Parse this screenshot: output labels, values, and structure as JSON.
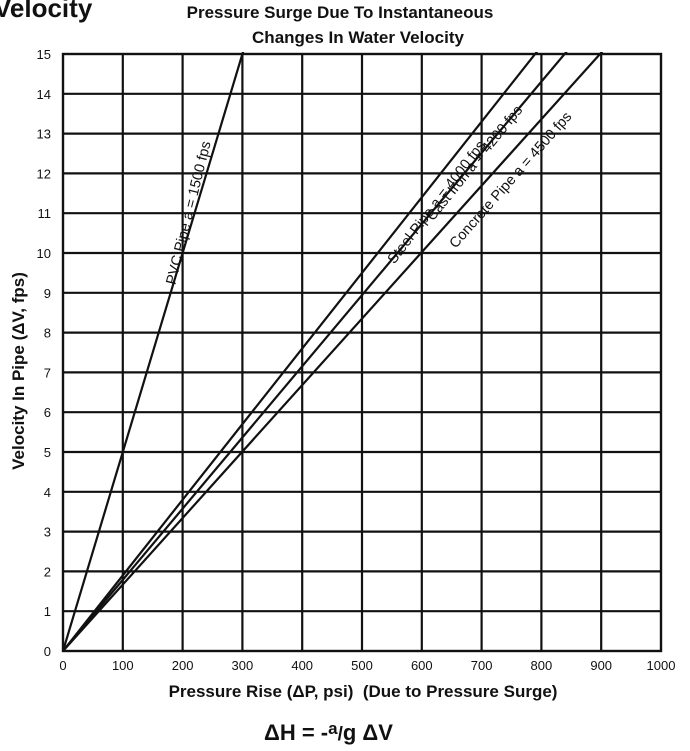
{
  "heading_cut": "Velocity",
  "formula": {
    "lhs": "ΔH = -",
    "num": "a",
    "slash": "/",
    "den": "g",
    "rhs": " ΔV"
  },
  "chart_data": {
    "type": "line",
    "title_lines": [
      "Pressure Surge Due To Instantaneous",
      "Changes In Water Velocity"
    ],
    "xlabel": "Pressure Rise (ΔP, psi)  (Due to Pressure Surge)",
    "ylabel": "Velocity In Pipe (ΔV, fps)",
    "xlim": [
      0,
      1000
    ],
    "ylim": [
      0,
      15
    ],
    "x_ticks": [
      0,
      100,
      200,
      300,
      400,
      500,
      600,
      700,
      800,
      900,
      1000
    ],
    "y_ticks": [
      0,
      1,
      2,
      3,
      4,
      5,
      6,
      7,
      8,
      9,
      10,
      11,
      12,
      13,
      14,
      15
    ],
    "grid": true,
    "series": [
      {
        "name": "PVC Pipe  a = 1500 fps",
        "x": [
          0,
          310
        ],
        "y": [
          0,
          15.5
        ]
      },
      {
        "name": "Steel Pipe  a = 4000 fps",
        "x": [
          0,
          800
        ],
        "y": [
          0,
          15.2
        ]
      },
      {
        "name": "Cast Iron  a = 4200 fps",
        "x": [
          0,
          850
        ],
        "y": [
          0,
          15.2
        ]
      },
      {
        "name": "Concrete Pipe  a = 4500 fps",
        "x": [
          0,
          910
        ],
        "y": [
          0,
          15.2
        ]
      }
    ]
  }
}
